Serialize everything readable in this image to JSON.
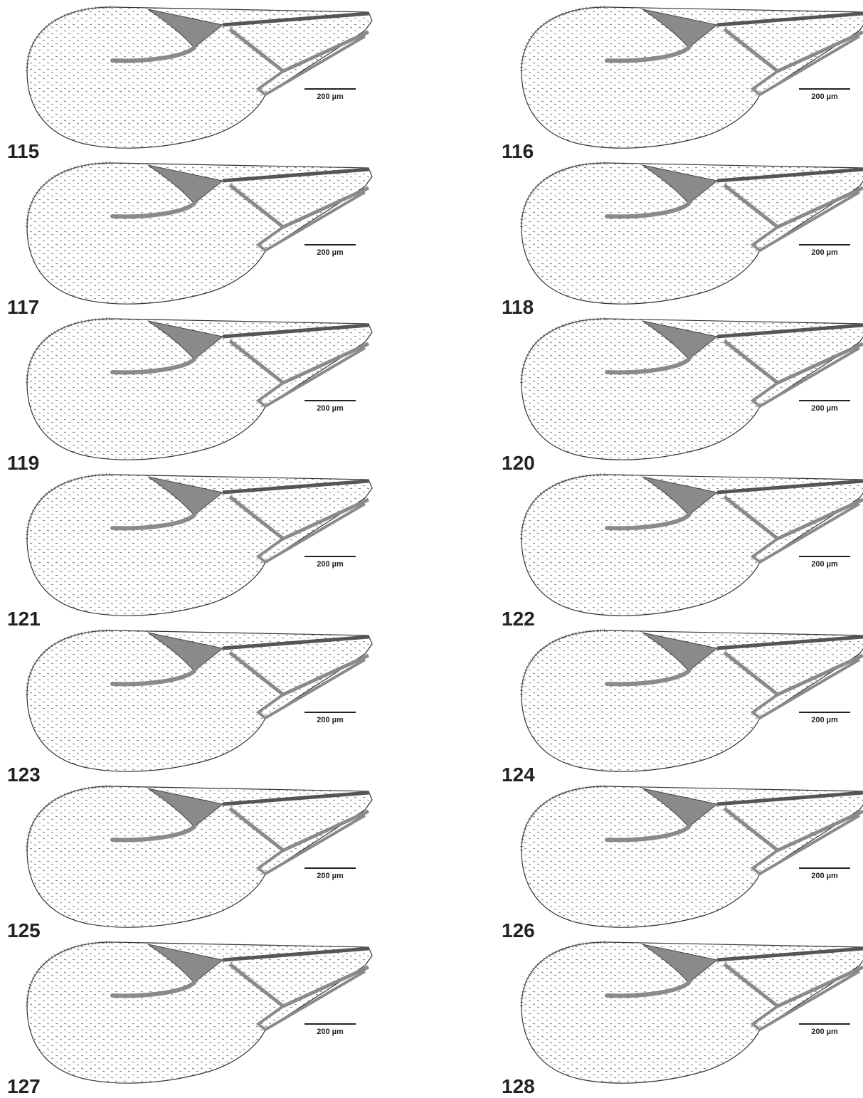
{
  "panels": [
    {
      "label": "115",
      "scale": "200 µm"
    },
    {
      "label": "116",
      "scale": "200 µm"
    },
    {
      "label": "117",
      "scale": "200 µm"
    },
    {
      "label": "118",
      "scale": "200 µm"
    },
    {
      "label": "119",
      "scale": "200 µm"
    },
    {
      "label": "120",
      "scale": "200 µm"
    },
    {
      "label": "121",
      "scale": "200 µm"
    },
    {
      "label": "122",
      "scale": "200 µm"
    },
    {
      "label": "123",
      "scale": "200 µm"
    },
    {
      "label": "124",
      "scale": "200 µm"
    },
    {
      "label": "125",
      "scale": "200 µm"
    },
    {
      "label": "126",
      "scale": "200 µm"
    },
    {
      "label": "127",
      "scale": "200 µm"
    },
    {
      "label": "128",
      "scale": "200 µm"
    }
  ]
}
